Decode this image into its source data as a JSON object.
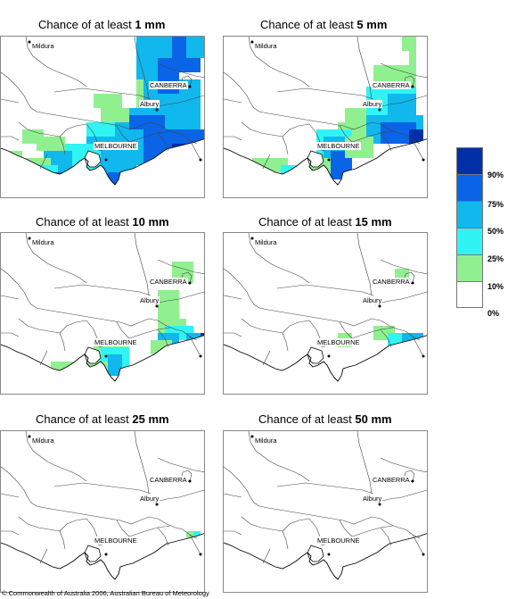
{
  "title_prefix": "Chance of at least",
  "panels": [
    {
      "amount": "1 mm"
    },
    {
      "amount": "5 mm"
    },
    {
      "amount": "10 mm"
    },
    {
      "amount": "15 mm"
    },
    {
      "amount": "25 mm"
    },
    {
      "amount": "50 mm"
    }
  ],
  "cities": {
    "mildura": "Mildura",
    "canberra": "CANBERRA",
    "albury": "Albury",
    "melbourne": "MELBOURNE"
  },
  "legend": {
    "labels": [
      "90%",
      "75%",
      "50%",
      "25%",
      "10%",
      "0%"
    ],
    "colors": [
      "#0030a8",
      "#0a64e8",
      "#10b8ee",
      "#30f4f4",
      "#90f090",
      "#ffffff"
    ]
  },
  "copyright": "© Commonwealth of Australia 2006, Australian Bureau of Meteorology"
}
